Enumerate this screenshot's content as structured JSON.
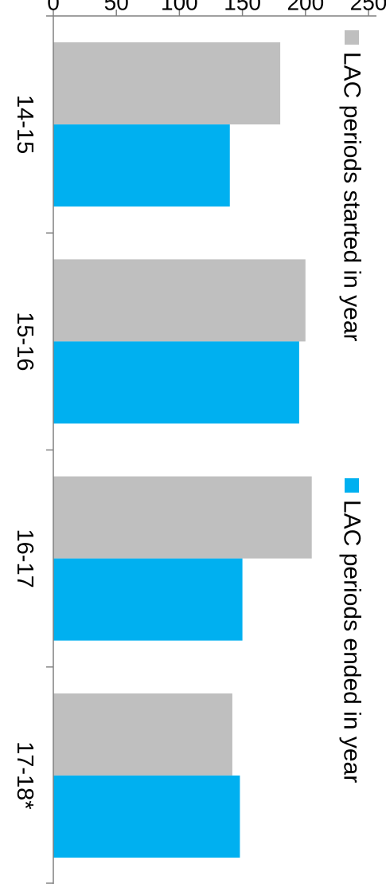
{
  "chart_data": {
    "type": "bar",
    "orientation": "vertical",
    "rotation": "90deg clockwise",
    "categories": [
      "14-15",
      "15-16",
      "16-17",
      "17-18*"
    ],
    "series": [
      {
        "name": "LAC periods started in year",
        "color": "#bfbfbf",
        "values": [
          180,
          200,
          205,
          142
        ]
      },
      {
        "name": "LAC periods ended in year",
        "color": "#00b0f0",
        "values": [
          140,
          195,
          150,
          148
        ]
      }
    ],
    "ylim": [
      0,
      250
    ],
    "yticks": [
      "0",
      "50",
      "100",
      "150",
      "200",
      "250"
    ],
    "grid": false,
    "legend_position": "top"
  }
}
